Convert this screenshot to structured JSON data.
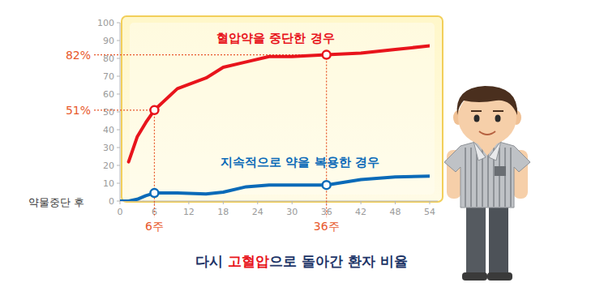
{
  "chart_data": {
    "type": "line",
    "title": "다시 고혈압으로 돌아간 환자 비율",
    "title_highlight": "고혈압",
    "x_label": "약물중단 후",
    "xlim": [
      0,
      54
    ],
    "xticks": [
      0,
      6,
      12,
      18,
      24,
      30,
      36,
      42,
      48,
      54
    ],
    "ylim": [
      0,
      100
    ],
    "yticks": [
      0,
      10,
      20,
      30,
      40,
      50,
      60,
      70,
      80,
      90,
      100
    ],
    "grid": false,
    "x": [
      0,
      1.5,
      3,
      4.5,
      6,
      10,
      15,
      18,
      22,
      26,
      30,
      36,
      42,
      48,
      54
    ],
    "series": [
      {
        "name": "혈압약을 중단한 경우",
        "color": "#e8141c",
        "values": [
          null,
          22,
          36,
          44,
          51,
          63,
          69,
          75,
          78,
          81,
          81,
          82,
          83,
          85,
          87
        ],
        "value_labels": [
          null,
          null,
          null,
          null,
          "51%",
          null,
          null,
          null,
          null,
          null,
          null,
          "82%",
          null,
          null,
          null
        ]
      },
      {
        "name": "지속적으로 약을 복용한 경우",
        "color": "#0a6ab8",
        "values": [
          0,
          0,
          1,
          3,
          4.5,
          4.5,
          4,
          5,
          8,
          9,
          9,
          9,
          12,
          13.5,
          14
        ]
      }
    ],
    "annotations": [
      {
        "x": 6,
        "label": "6주"
      },
      {
        "x": 36,
        "label": "36주"
      }
    ],
    "marker": "circle"
  }
}
